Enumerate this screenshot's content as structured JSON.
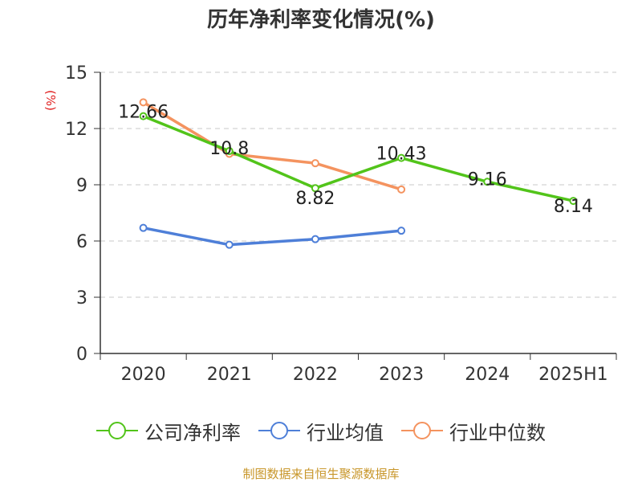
{
  "title": "历年净利率变化情况(%)",
  "source": "制图数据来自恒生聚源数据库",
  "chart_data": {
    "type": "line",
    "title": "历年净利率变化情况(%)",
    "ylabel": "(%)",
    "xlabel": "",
    "categories": [
      "2020",
      "2021",
      "2022",
      "2023",
      "2024",
      "2025H1"
    ],
    "ylim": [
      0,
      15
    ],
    "yticks": [
      0,
      3,
      6,
      9,
      12,
      15
    ],
    "grid": "horizontal dashed",
    "legend_position": "bottom",
    "series": [
      {
        "name": "公司净利率",
        "color": "#52c41a",
        "values": [
          12.66,
          10.8,
          8.82,
          10.43,
          9.16,
          8.14
        ],
        "labels": [
          "12.66",
          "10.8",
          "8.82",
          "10.43",
          "9.16",
          "8.14"
        ]
      },
      {
        "name": "行业均值",
        "color": "#4e7fd8",
        "values": [
          6.7,
          5.8,
          6.1,
          6.55,
          null,
          null
        ],
        "labels": []
      },
      {
        "name": "行业中位数",
        "color": "#f4935f",
        "values": [
          13.4,
          10.65,
          10.15,
          8.75,
          null,
          null
        ],
        "labels": []
      }
    ]
  }
}
